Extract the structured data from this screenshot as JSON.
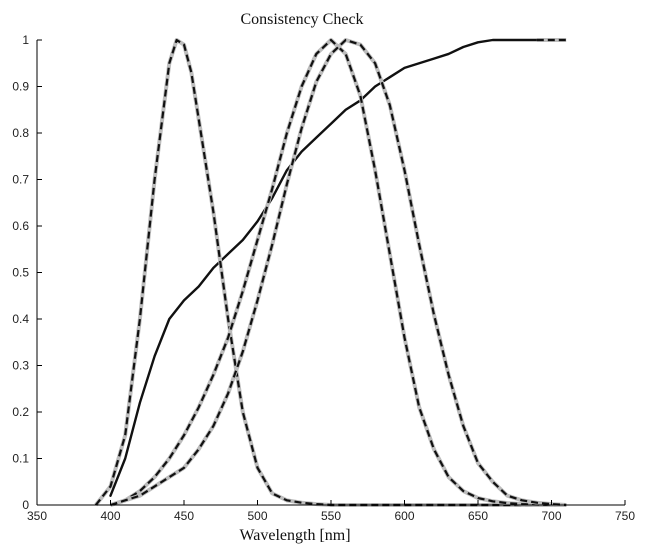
{
  "chart_data": {
    "type": "line",
    "title": "Consistency Check",
    "xlabel": "Wavelength [nm]",
    "ylabel": "",
    "xlim": [
      350,
      750
    ],
    "ylim": [
      0,
      1
    ],
    "xticks": [
      350,
      400,
      450,
      500,
      550,
      600,
      650,
      700,
      750
    ],
    "yticks": [
      0,
      0.1,
      0.2,
      0.3,
      0.4,
      0.5,
      0.6,
      0.7,
      0.8,
      0.9,
      1
    ],
    "ytick_labels": [
      "0",
      "0.1",
      "0.2",
      "0.3",
      "0.4",
      "0.5",
      "0.6",
      "0.7",
      "0.8",
      "0.9",
      "1"
    ],
    "grid": false,
    "legend": "none",
    "colors": {
      "solid": "#111111",
      "dashed_under": "#bdbdbd",
      "dashed": "#111111",
      "axis": "#000000"
    },
    "series": [
      {
        "style": "solid",
        "x": [
          400,
          410,
          420,
          430,
          440,
          450,
          460,
          470,
          480,
          490,
          500,
          510,
          520,
          530,
          540,
          550,
          560,
          570,
          580,
          590,
          600,
          610,
          620,
          630,
          640,
          650,
          660,
          670,
          680,
          690
        ],
        "y": [
          0.02,
          0.1,
          0.22,
          0.32,
          0.4,
          0.44,
          0.47,
          0.51,
          0.54,
          0.57,
          0.61,
          0.66,
          0.72,
          0.76,
          0.79,
          0.82,
          0.85,
          0.87,
          0.9,
          0.92,
          0.94,
          0.95,
          0.96,
          0.97,
          0.985,
          0.995,
          1.0,
          1.0,
          1.0,
          1.0
        ]
      },
      {
        "style": "dashed",
        "x": [
          690,
          700,
          710
        ],
        "y": [
          1.0,
          1.0,
          1.0
        ]
      },
      {
        "style": "dashed",
        "x": [
          390,
          400,
          410,
          420,
          430,
          440,
          445,
          450,
          455,
          460,
          470,
          480,
          490,
          500,
          510,
          520,
          530,
          540,
          550,
          560,
          570,
          580,
          600,
          650,
          700,
          710
        ],
        "y": [
          0.0,
          0.04,
          0.15,
          0.4,
          0.7,
          0.95,
          1.0,
          0.99,
          0.93,
          0.83,
          0.63,
          0.4,
          0.2,
          0.08,
          0.025,
          0.01,
          0.005,
          0.002,
          0.0,
          0.0,
          0.0,
          0.0,
          0.0,
          0.0,
          0.0,
          0.0
        ]
      },
      {
        "style": "dashed",
        "x": [
          400,
          410,
          420,
          430,
          440,
          450,
          460,
          470,
          480,
          490,
          500,
          510,
          520,
          530,
          540,
          550,
          560,
          570,
          580,
          590,
          600,
          610,
          620,
          630,
          640,
          650,
          660,
          670,
          680,
          690,
          700,
          710
        ],
        "y": [
          0.0,
          0.01,
          0.03,
          0.06,
          0.1,
          0.15,
          0.21,
          0.28,
          0.36,
          0.46,
          0.57,
          0.68,
          0.8,
          0.9,
          0.97,
          1.0,
          0.97,
          0.88,
          0.72,
          0.54,
          0.36,
          0.21,
          0.12,
          0.06,
          0.03,
          0.015,
          0.008,
          0.004,
          0.002,
          0.001,
          0.0,
          0.0
        ]
      },
      {
        "style": "dashed",
        "x": [
          400,
          410,
          420,
          430,
          440,
          450,
          460,
          470,
          480,
          490,
          500,
          510,
          520,
          530,
          540,
          550,
          560,
          570,
          580,
          590,
          600,
          610,
          620,
          630,
          640,
          650,
          660,
          670,
          680,
          690,
          700,
          710
        ],
        "y": [
          0.0,
          0.01,
          0.02,
          0.04,
          0.06,
          0.08,
          0.12,
          0.17,
          0.24,
          0.33,
          0.44,
          0.56,
          0.69,
          0.81,
          0.91,
          0.97,
          1.0,
          0.99,
          0.95,
          0.86,
          0.72,
          0.56,
          0.41,
          0.28,
          0.17,
          0.09,
          0.05,
          0.02,
          0.01,
          0.005,
          0.002,
          0.0
        ]
      }
    ]
  }
}
